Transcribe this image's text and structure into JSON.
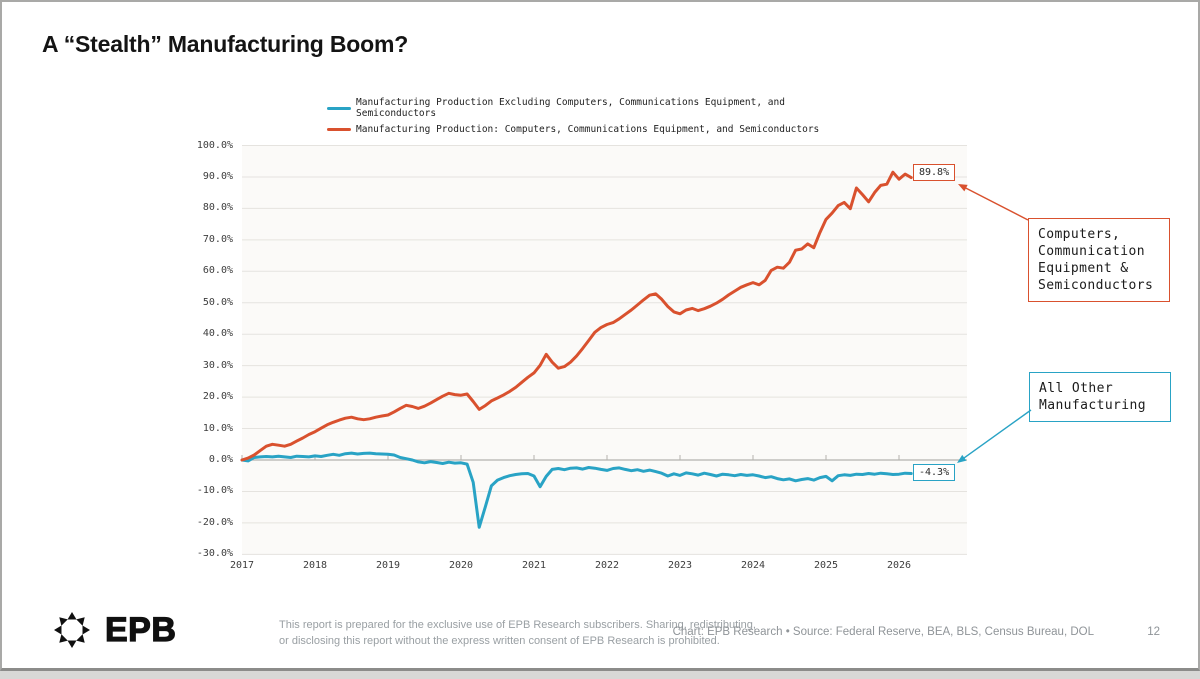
{
  "slide": {
    "title": "A “Stealth” Manufacturing Boom?"
  },
  "colors": {
    "teal": "#29A3C5",
    "orange": "#D9512E",
    "gridline": "#e5e3df",
    "zero_axis": "#b4b2ae",
    "plot_background": "#fbfaf8"
  },
  "chart_data": {
    "type": "line",
    "title": "",
    "xlabel": "",
    "ylabel": "",
    "legend_position": "top-center",
    "grid": true,
    "x_axis": {
      "start": 2017,
      "step_per_point": 0.0833333,
      "tick_values": [
        2017,
        2018,
        2019,
        2020,
        2021,
        2022,
        2023,
        2024,
        2025,
        2026
      ],
      "tick_labels": [
        "2017",
        "2018",
        "2019",
        "2020",
        "2021",
        "2022",
        "2023",
        "2024",
        "2025",
        "2026"
      ]
    },
    "y_axis": {
      "min": -30,
      "max": 100,
      "step": 10,
      "tick_values": [
        100,
        90,
        80,
        70,
        60,
        50,
        40,
        30,
        20,
        10,
        0,
        -10,
        -20,
        -30
      ],
      "tick_labels": [
        "100.0%",
        "90.0%",
        "80.0%",
        "70.0%",
        "60.0%",
        "50.0%",
        "40.0%",
        "30.0%",
        "20.0%",
        "10.0%",
        "0.0%",
        "-10.0%",
        "-20.0%",
        "-30.0%"
      ]
    },
    "series": [
      {
        "name": "Manufacturing Production Excluding Computers, Communications Equipment, and Semiconductors",
        "color": "#29A3C5",
        "end_label": "-4.3%",
        "values": [
          0.0,
          -0.3,
          0.8,
          1.0,
          1.1,
          1.0,
          1.2,
          1.0,
          0.8,
          1.2,
          1.1,
          1.0,
          1.3,
          1.1,
          1.5,
          1.8,
          1.5,
          2.0,
          2.2,
          1.9,
          2.1,
          2.2,
          2.0,
          1.9,
          1.8,
          1.6,
          0.8,
          0.4,
          0.0,
          -0.6,
          -0.9,
          -0.5,
          -0.8,
          -1.1,
          -0.7,
          -1.0,
          -0.9,
          -1.3,
          -7.1,
          -21.4,
          -14.9,
          -8.2,
          -6.4,
          -5.6,
          -5.0,
          -4.6,
          -4.4,
          -4.3,
          -5.1,
          -8.5,
          -5.2,
          -3.0,
          -2.7,
          -3.1,
          -2.6,
          -2.5,
          -2.9,
          -2.4,
          -2.6,
          -3.0,
          -3.3,
          -2.7,
          -2.5,
          -3.0,
          -3.4,
          -3.1,
          -3.6,
          -3.2,
          -3.7,
          -4.2,
          -5.1,
          -4.4,
          -4.9,
          -4.1,
          -4.4,
          -4.8,
          -4.2,
          -4.6,
          -5.1,
          -4.5,
          -4.7,
          -5.0,
          -4.6,
          -4.9,
          -4.7,
          -5.1,
          -5.6,
          -5.3,
          -5.9,
          -6.3,
          -6.0,
          -6.6,
          -6.2,
          -5.9,
          -6.4,
          -5.6,
          -5.2,
          -6.6,
          -5.0,
          -4.7,
          -4.9,
          -4.5,
          -4.6,
          -4.3,
          -4.5,
          -4.2,
          -4.4,
          -4.6,
          -4.5,
          -4.2,
          -4.3
        ]
      },
      {
        "name": "Manufacturing Production: Computers, Communications Equipment, and Semiconductors",
        "color": "#D9512E",
        "end_label": "89.8%",
        "values": [
          0.0,
          0.6,
          1.6,
          3.0,
          4.4,
          5.0,
          4.7,
          4.4,
          5.0,
          6.0,
          7.0,
          8.1,
          9.0,
          10.1,
          11.2,
          12.0,
          12.7,
          13.3,
          13.6,
          13.1,
          12.8,
          13.1,
          13.6,
          14.0,
          14.3,
          15.3,
          16.4,
          17.4,
          17.0,
          16.4,
          17.1,
          18.1,
          19.2,
          20.3,
          21.2,
          20.8,
          20.6,
          21.0,
          18.6,
          16.1,
          17.3,
          18.8,
          19.7,
          20.7,
          21.8,
          23.1,
          24.7,
          26.3,
          27.7,
          30.1,
          33.6,
          31.1,
          29.2,
          29.7,
          31.1,
          33.1,
          35.5,
          38.0,
          40.6,
          42.1,
          43.1,
          43.7,
          44.9,
          46.3,
          47.7,
          49.3,
          50.9,
          52.4,
          52.8,
          51.1,
          48.8,
          47.1,
          46.5,
          47.7,
          48.2,
          47.5,
          48.1,
          48.9,
          49.9,
          51.1,
          52.5,
          53.7,
          54.9,
          55.7,
          56.4,
          55.7,
          57.1,
          60.3,
          61.3,
          61.0,
          62.9,
          66.7,
          67.1,
          68.7,
          67.5,
          72.3,
          76.5,
          78.5,
          80.9,
          81.9,
          79.9,
          86.5,
          84.4,
          82.1,
          85.1,
          87.3,
          87.7,
          91.5,
          89.3,
          90.9,
          89.8
        ]
      }
    ]
  },
  "annotations": {
    "computers_box": "Computers,\nCommunication\nEquipment &\nSemiconductors",
    "all_other_box": "All Other\nManufacturing"
  },
  "footer": {
    "logo_text": "EPB",
    "disclaimer_line1": "This report is prepared for the exclusive use of EPB Research subscribers. Sharing, redistributing,",
    "disclaimer_line2": "or disclosing this report without the express written consent of EPB Research is prohibited.",
    "credit": "Chart: EPB Research  •  Source: Federal Reserve, BEA, BLS, Census Bureau, DOL",
    "page_number": "12"
  }
}
